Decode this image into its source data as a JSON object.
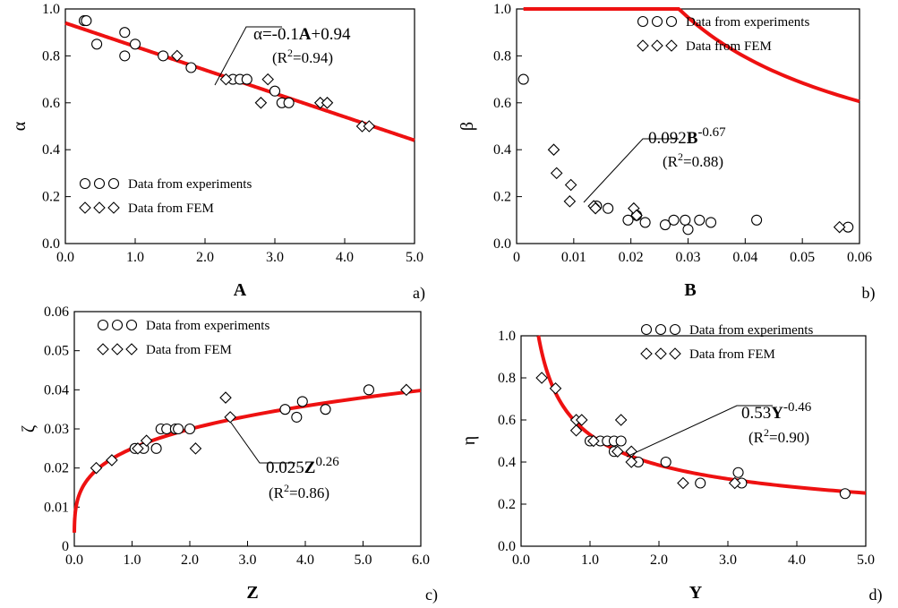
{
  "chart_data": [
    {
      "type": "scatter",
      "panel": "a)",
      "xlabel": "A",
      "ylabel": "α",
      "xlim": [
        0,
        5
      ],
      "ylim": [
        0,
        1
      ],
      "xticks": [
        "0.0",
        "1.0",
        "2.0",
        "3.0",
        "4.0",
        "5.0"
      ],
      "yticks": [
        "0.0",
        "0.2",
        "0.4",
        "0.6",
        "0.8",
        "1.0"
      ],
      "legend": {
        "experiments": "Data from experiments",
        "fem": "Data from FEM",
        "placement": "bottom-left"
      },
      "fit": {
        "kind": "linear",
        "a": -0.1,
        "b": 0.94,
        "color": "#ee1111",
        "x_range": [
          0,
          5
        ],
        "label_pre": "α=-0.1",
        "label_var": "A",
        "label_post": "+0.94",
        "r2_pre": "(R",
        "r2_sup": "2",
        "r2_post": "=0.94)"
      },
      "series": [
        {
          "name": "Data from experiments",
          "points": [
            [
              0.27,
              0.95
            ],
            [
              0.3,
              0.95
            ],
            [
              0.45,
              0.85
            ],
            [
              0.85,
              0.9
            ],
            [
              0.85,
              0.8
            ],
            [
              1.0,
              0.85
            ],
            [
              1.4,
              0.8
            ],
            [
              1.8,
              0.75
            ],
            [
              2.4,
              0.7
            ],
            [
              2.5,
              0.7
            ],
            [
              2.6,
              0.7
            ],
            [
              3.0,
              0.65
            ],
            [
              3.1,
              0.6
            ],
            [
              3.2,
              0.6
            ]
          ]
        },
        {
          "name": "Data from FEM",
          "points": [
            [
              1.6,
              0.8
            ],
            [
              2.3,
              0.7
            ],
            [
              2.8,
              0.6
            ],
            [
              2.9,
              0.7
            ],
            [
              3.65,
              0.6
            ],
            [
              3.75,
              0.6
            ],
            [
              4.25,
              0.5
            ],
            [
              4.35,
              0.5
            ]
          ]
        }
      ]
    },
    {
      "type": "scatter",
      "panel": "b)",
      "xlabel": "B",
      "ylabel": "β",
      "xlim": [
        0,
        0.06
      ],
      "ylim": [
        0,
        1
      ],
      "xticks": [
        "0",
        "0.01",
        "0.02",
        "0.03",
        "0.04",
        "0.05",
        "0.06"
      ],
      "yticks": [
        "0.0",
        "0.2",
        "0.4",
        "0.6",
        "0.8",
        "1.0"
      ],
      "legend": {
        "experiments": "Data from experiments",
        "fem": "Data from FEM",
        "placement": "top-right"
      },
      "fit": {
        "kind": "power",
        "a": 0.092,
        "b": -0.67,
        "color": "#ee1111",
        "x_range": [
          0.0012,
          0.06
        ],
        "label_pre": "0.092",
        "label_var": "B",
        "label_post": "-0.67",
        "r2_pre": "(R",
        "r2_sup": "2",
        "r2_post": "=0.88)"
      },
      "series": [
        {
          "name": "Data from experiments",
          "points": [
            [
              0.0012,
              0.7
            ],
            [
              0.014,
              0.16
            ],
            [
              0.016,
              0.15
            ],
            [
              0.0195,
              0.1
            ],
            [
              0.021,
              0.12
            ],
            [
              0.0225,
              0.09
            ],
            [
              0.026,
              0.08
            ],
            [
              0.0275,
              0.1
            ],
            [
              0.0295,
              0.1
            ],
            [
              0.03,
              0.06
            ],
            [
              0.032,
              0.1
            ],
            [
              0.034,
              0.09
            ],
            [
              0.042,
              0.1
            ],
            [
              0.058,
              0.07
            ]
          ]
        },
        {
          "name": "Data from FEM",
          "points": [
            [
              0.0065,
              0.4
            ],
            [
              0.007,
              0.3
            ],
            [
              0.0095,
              0.25
            ],
            [
              0.0093,
              0.18
            ],
            [
              0.0135,
              0.16
            ],
            [
              0.0138,
              0.15
            ],
            [
              0.0205,
              0.15
            ],
            [
              0.021,
              0.12
            ],
            [
              0.0565,
              0.07
            ]
          ]
        }
      ]
    },
    {
      "type": "scatter",
      "panel": "c)",
      "xlabel": "Z",
      "ylabel": "ζ",
      "xlim": [
        0,
        6
      ],
      "ylim": [
        0,
        0.06
      ],
      "xticks": [
        "0.0",
        "1.0",
        "2.0",
        "3.0",
        "4.0",
        "5.0",
        "6.0"
      ],
      "yticks": [
        "0",
        "0.01",
        "0.02",
        "0.03",
        "0.04",
        "0.05",
        "0.06"
      ],
      "legend": {
        "experiments": "Data from experiments",
        "fem": "Data from FEM",
        "placement": "top-left"
      },
      "fit": {
        "kind": "power",
        "a": 0.025,
        "b": 0.26,
        "color": "#ee1111",
        "x_range": [
          0.0005,
          6
        ],
        "label_pre": "0.025",
        "label_var": "Z",
        "label_post": "0.26",
        "r2_pre": "(R",
        "r2_sup": "2",
        "r2_post": "=0.86)"
      },
      "series": [
        {
          "name": "Data from experiments",
          "points": [
            [
              1.05,
              0.025
            ],
            [
              1.2,
              0.025
            ],
            [
              1.42,
              0.025
            ],
            [
              1.5,
              0.03
            ],
            [
              1.6,
              0.03
            ],
            [
              1.75,
              0.03
            ],
            [
              1.8,
              0.03
            ],
            [
              2.0,
              0.03
            ],
            [
              3.65,
              0.035
            ],
            [
              3.85,
              0.033
            ],
            [
              3.95,
              0.037
            ],
            [
              4.35,
              0.035
            ],
            [
              5.1,
              0.04
            ]
          ]
        },
        {
          "name": "Data from FEM",
          "points": [
            [
              0.38,
              0.02
            ],
            [
              0.65,
              0.022
            ],
            [
              1.1,
              0.025
            ],
            [
              1.25,
              0.027
            ],
            [
              2.1,
              0.025
            ],
            [
              2.62,
              0.038
            ],
            [
              2.7,
              0.033
            ],
            [
              5.75,
              0.04
            ]
          ]
        }
      ]
    },
    {
      "type": "scatter",
      "panel": "d)",
      "xlabel": "Y",
      "ylabel": "η",
      "xlim": [
        0,
        5
      ],
      "ylim": [
        0,
        1
      ],
      "xticks": [
        "0.0",
        "1.0",
        "2.0",
        "3.0",
        "4.0",
        "5.0"
      ],
      "yticks": [
        "0.0",
        "0.2",
        "0.4",
        "0.6",
        "0.8",
        "1.0"
      ],
      "legend": {
        "experiments": "Data from experiments",
        "fem": "Data from FEM",
        "placement": "top-right"
      },
      "fit": {
        "kind": "power",
        "a": 0.53,
        "b": -0.46,
        "color": "#ee1111",
        "x_range": [
          0.25,
          5
        ],
        "label_pre": "0.53",
        "label_var": "Y",
        "label_post": "-0.46",
        "r2_pre": "(R",
        "r2_sup": "2",
        "r2_post": "=0.90)"
      },
      "series": [
        {
          "name": "Data from experiments",
          "points": [
            [
              1.0,
              0.5
            ],
            [
              1.15,
              0.5
            ],
            [
              1.25,
              0.5
            ],
            [
              1.35,
              0.5
            ],
            [
              1.35,
              0.45
            ],
            [
              1.45,
              0.5
            ],
            [
              1.7,
              0.4
            ],
            [
              2.1,
              0.4
            ],
            [
              2.6,
              0.3
            ],
            [
              3.15,
              0.35
            ],
            [
              3.2,
              0.3
            ],
            [
              4.7,
              0.25
            ]
          ]
        },
        {
          "name": "Data from FEM",
          "points": [
            [
              0.3,
              0.8
            ],
            [
              0.5,
              0.75
            ],
            [
              0.8,
              0.6
            ],
            [
              0.8,
              0.55
            ],
            [
              0.88,
              0.6
            ],
            [
              1.05,
              0.5
            ],
            [
              1.4,
              0.45
            ],
            [
              1.45,
              0.6
            ],
            [
              1.6,
              0.45
            ],
            [
              1.6,
              0.4
            ],
            [
              2.35,
              0.3
            ],
            [
              3.1,
              0.3
            ]
          ]
        }
      ]
    }
  ]
}
